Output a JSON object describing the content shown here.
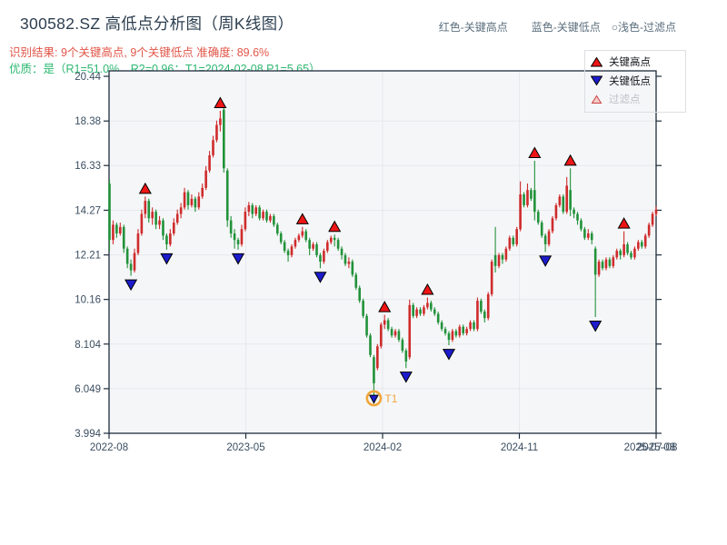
{
  "header": {
    "title": "300582.SZ 高低点分析图（周K线图）",
    "result_line": "识别结果: 9个关键高点, 9个关键低点  准确度: 89.6%",
    "quality_line": "优质：是（R1=51.0%，R2=0.96；T1=2024-02-08 P1=5.65）",
    "color_key": {
      "high_note": "红色-关键高点",
      "low_note": "蓝色-关键低点",
      "filtered_note": "○浅色-过滤点"
    }
  },
  "legend": {
    "items": [
      {
        "label": "关键高点",
        "marker": "red-up-triangle"
      },
      {
        "label": "关键低点",
        "marker": "blue-down-triangle"
      },
      {
        "label": "过滤点",
        "marker": "light-up-triangle"
      }
    ]
  },
  "colors": {
    "candle_up": "#cf2b2b",
    "candle_down": "#22923a",
    "key_high": "#ee1515",
    "key_low": "#1c1ccd",
    "filtered_fill": "#f6caca",
    "filtered_edge": "#cc4444",
    "t1_orange": "#f1a63a",
    "spine": "#1f2d3d",
    "grid": "#e6e8ec",
    "plot_bg": "#f5f6f8",
    "tick_text": "#3a4d60",
    "title_text": "#2c3e50",
    "result_text": "#e15548",
    "quality_text": "#2eb872",
    "header_key_text": "#5c6f7e"
  },
  "chart_data": {
    "type": "candlestick",
    "symbol": "300582.SZ",
    "period": "weekly",
    "title": "300582.SZ 高低点分析图（周K线图）",
    "accuracy": "89.6%",
    "counts": {
      "key_highs": 9,
      "key_lows": 9
    },
    "ylim": [
      3.994,
      20.44
    ],
    "y_ticks": [
      "20.44",
      "18.38",
      "16.33",
      "14.27",
      "12.21",
      "10.16",
      "8.104",
      "6.049",
      "3.994"
    ],
    "y_tick_values": [
      20.44,
      18.38,
      16.33,
      14.27,
      12.21,
      10.16,
      8.104,
      6.049,
      3.994
    ],
    "x_ticks": [
      "2022-08",
      "2023-05",
      "2024-02",
      "2024-11",
      "2025-08"
    ],
    "last_date_label": "2025-07-08",
    "grid": true,
    "legend_position": "top-right",
    "candles_ohlc": [
      [
        15.5,
        15.7,
        12.4,
        12.9
      ],
      [
        12.9,
        13.8,
        12.7,
        13.6
      ],
      [
        13.6,
        13.7,
        13.0,
        13.2
      ],
      [
        13.2,
        13.7,
        13.1,
        13.5
      ],
      [
        13.5,
        13.6,
        12.3,
        12.5
      ],
      [
        12.5,
        12.6,
        11.6,
        11.8
      ],
      [
        11.8,
        12.0,
        11.25,
        11.5
      ],
      [
        11.5,
        12.5,
        11.4,
        12.3
      ],
      [
        12.3,
        13.4,
        12.2,
        13.2
      ],
      [
        13.2,
        14.3,
        13.1,
        14.1
      ],
      [
        14.1,
        14.9,
        13.9,
        14.7
      ],
      [
        14.7,
        14.8,
        13.7,
        13.9
      ],
      [
        13.9,
        14.4,
        13.6,
        14.2
      ],
      [
        14.2,
        14.3,
        13.4,
        13.6
      ],
      [
        13.6,
        14.0,
        13.4,
        13.8
      ],
      [
        13.8,
        13.9,
        12.9,
        13.1
      ],
      [
        13.1,
        13.2,
        12.45,
        12.7
      ],
      [
        12.7,
        13.4,
        12.6,
        13.2
      ],
      [
        13.2,
        13.9,
        13.1,
        13.7
      ],
      [
        13.7,
        14.3,
        13.6,
        14.1
      ],
      [
        14.1,
        14.6,
        13.9,
        14.4
      ],
      [
        14.4,
        15.3,
        14.3,
        15.1
      ],
      [
        15.1,
        15.2,
        14.3,
        14.5
      ],
      [
        14.5,
        15.0,
        14.4,
        14.8
      ],
      [
        14.8,
        14.9,
        14.2,
        14.4
      ],
      [
        14.4,
        15.1,
        14.3,
        14.9
      ],
      [
        14.9,
        15.5,
        14.8,
        15.3
      ],
      [
        15.3,
        16.3,
        15.2,
        16.1
      ],
      [
        16.1,
        17.0,
        16.0,
        16.8
      ],
      [
        16.8,
        17.7,
        16.7,
        17.5
      ],
      [
        17.5,
        18.4,
        17.4,
        18.2
      ],
      [
        18.2,
        18.85,
        17.9,
        18.5
      ],
      [
        18.9,
        19.0,
        16.0,
        16.2
      ],
      [
        16.1,
        16.2,
        13.5,
        13.8
      ],
      [
        13.8,
        14.0,
        13.0,
        13.2
      ],
      [
        13.2,
        13.4,
        12.5,
        12.9
      ],
      [
        12.9,
        13.0,
        12.45,
        12.7
      ],
      [
        12.7,
        13.6,
        12.6,
        13.4
      ],
      [
        13.4,
        14.4,
        13.3,
        14.2
      ],
      [
        14.2,
        14.65,
        14.0,
        14.5
      ],
      [
        14.5,
        14.6,
        13.9,
        14.1
      ],
      [
        14.1,
        14.5,
        14.0,
        14.4
      ],
      [
        14.4,
        14.5,
        13.8,
        13.9
      ],
      [
        13.9,
        14.3,
        13.8,
        14.2
      ],
      [
        14.2,
        14.3,
        13.7,
        13.8
      ],
      [
        13.8,
        14.1,
        13.7,
        14.0
      ],
      [
        14.0,
        14.1,
        13.5,
        13.6
      ],
      [
        13.6,
        13.7,
        13.1,
        13.2
      ],
      [
        13.2,
        13.3,
        12.7,
        12.8
      ],
      [
        12.8,
        12.9,
        12.3,
        12.4
      ],
      [
        12.4,
        12.5,
        11.9,
        12.2
      ],
      [
        12.2,
        12.7,
        12.1,
        12.6
      ],
      [
        12.6,
        13.0,
        12.5,
        12.9
      ],
      [
        12.9,
        13.2,
        12.8,
        13.1
      ],
      [
        13.1,
        13.5,
        13.0,
        13.3
      ],
      [
        13.3,
        13.4,
        12.8,
        12.9
      ],
      [
        12.9,
        13.0,
        12.2,
        12.5
      ],
      [
        12.5,
        12.8,
        12.4,
        12.7
      ],
      [
        12.7,
        12.8,
        12.1,
        12.2
      ],
      [
        12.2,
        12.3,
        11.6,
        11.9
      ],
      [
        11.9,
        12.5,
        11.8,
        12.4
      ],
      [
        12.4,
        12.9,
        12.3,
        12.8
      ],
      [
        12.8,
        13.1,
        12.7,
        13.0
      ],
      [
        13.0,
        13.15,
        12.6,
        12.9
      ],
      [
        12.9,
        13.0,
        12.4,
        12.5
      ],
      [
        12.5,
        12.6,
        12.0,
        12.2
      ],
      [
        12.2,
        12.3,
        11.7,
        11.8
      ],
      [
        11.8,
        12.1,
        11.6,
        11.9
      ],
      [
        11.9,
        12.0,
        11.2,
        11.3
      ],
      [
        11.3,
        11.4,
        10.6,
        10.7
      ],
      [
        10.7,
        10.8,
        10.0,
        10.1
      ],
      [
        10.1,
        10.2,
        9.3,
        9.4
      ],
      [
        9.4,
        9.5,
        8.4,
        8.5
      ],
      [
        8.5,
        8.6,
        7.5,
        7.6
      ],
      [
        7.5,
        7.6,
        5.65,
        6.3
      ],
      [
        7.0,
        8.1,
        6.9,
        8.0
      ],
      [
        8.0,
        9.1,
        7.9,
        9.0
      ],
      [
        9.0,
        9.45,
        8.8,
        9.2
      ],
      [
        9.2,
        9.3,
        8.7,
        8.8
      ],
      [
        8.8,
        8.9,
        8.4,
        8.5
      ],
      [
        8.5,
        8.8,
        8.4,
        8.7
      ],
      [
        8.7,
        8.8,
        8.2,
        8.3
      ],
      [
        8.3,
        8.4,
        7.7,
        7.8
      ],
      [
        7.8,
        7.9,
        7.0,
        7.3
      ],
      [
        7.5,
        10.15,
        7.4,
        9.9
      ],
      [
        9.9,
        10.0,
        9.3,
        9.4
      ],
      [
        9.4,
        9.8,
        9.3,
        9.7
      ],
      [
        9.7,
        9.8,
        9.4,
        9.5
      ],
      [
        9.5,
        9.9,
        9.4,
        9.8
      ],
      [
        9.8,
        10.25,
        9.7,
        10.0
      ],
      [
        10.0,
        10.1,
        9.6,
        9.7
      ],
      [
        9.7,
        9.8,
        9.4,
        9.5
      ],
      [
        9.5,
        9.6,
        9.0,
        9.1
      ],
      [
        9.1,
        9.2,
        8.7,
        8.8
      ],
      [
        8.8,
        8.9,
        8.5,
        8.6
      ],
      [
        8.6,
        8.7,
        8.05,
        8.3
      ],
      [
        8.3,
        8.8,
        8.2,
        8.7
      ],
      [
        8.7,
        8.8,
        8.4,
        8.5
      ],
      [
        8.5,
        9.0,
        8.4,
        8.9
      ],
      [
        8.9,
        9.0,
        8.5,
        8.6
      ],
      [
        8.6,
        8.9,
        8.5,
        8.8
      ],
      [
        8.8,
        9.2,
        8.7,
        9.1
      ],
      [
        9.1,
        9.2,
        8.7,
        8.8
      ],
      [
        8.8,
        10.25,
        8.7,
        10.1
      ],
      [
        10.1,
        10.2,
        9.5,
        9.6
      ],
      [
        9.6,
        9.7,
        9.1,
        9.3
      ],
      [
        9.3,
        10.5,
        9.2,
        10.4
      ],
      [
        10.4,
        12.0,
        10.3,
        11.9
      ],
      [
        12.2,
        13.5,
        11.4,
        11.7
      ],
      [
        11.7,
        12.3,
        11.6,
        12.2
      ],
      [
        12.2,
        12.3,
        11.8,
        12.0
      ],
      [
        12.0,
        12.6,
        11.9,
        12.5
      ],
      [
        12.5,
        13.1,
        12.4,
        13.0
      ],
      [
        13.0,
        13.1,
        12.6,
        12.7
      ],
      [
        12.7,
        13.5,
        12.6,
        13.4
      ],
      [
        13.4,
        15.6,
        13.3,
        15.0
      ],
      [
        15.0,
        15.1,
        14.4,
        14.5
      ],
      [
        14.5,
        15.5,
        14.4,
        15.2
      ],
      [
        15.2,
        15.3,
        14.7,
        14.8
      ],
      [
        15.2,
        16.55,
        13.8,
        14.2
      ],
      [
        14.2,
        14.3,
        13.6,
        13.7
      ],
      [
        13.7,
        13.8,
        13.0,
        13.1
      ],
      [
        13.1,
        13.2,
        12.35,
        12.7
      ],
      [
        12.7,
        13.4,
        12.6,
        13.3
      ],
      [
        13.3,
        14.0,
        13.2,
        13.9
      ],
      [
        13.9,
        14.6,
        13.8,
        14.5
      ],
      [
        14.5,
        15.0,
        14.4,
        14.9
      ],
      [
        14.9,
        15.0,
        14.1,
        14.2
      ],
      [
        14.2,
        15.8,
        14.1,
        15.4
      ],
      [
        15.2,
        16.2,
        14.0,
        14.3
      ],
      [
        14.3,
        14.4,
        13.9,
        14.1
      ],
      [
        14.1,
        14.2,
        13.6,
        13.8
      ],
      [
        13.8,
        13.9,
        13.3,
        13.4
      ],
      [
        13.4,
        13.5,
        12.9,
        13.0
      ],
      [
        13.0,
        13.4,
        12.9,
        13.2
      ],
      [
        13.2,
        13.3,
        12.7,
        12.9
      ],
      [
        12.5,
        12.6,
        9.35,
        11.3
      ],
      [
        11.3,
        12.0,
        11.2,
        11.9
      ],
      [
        11.9,
        12.0,
        11.5,
        11.6
      ],
      [
        11.6,
        12.1,
        11.5,
        12.0
      ],
      [
        12.0,
        12.1,
        11.6,
        11.7
      ],
      [
        11.7,
        12.2,
        11.6,
        12.1
      ],
      [
        12.1,
        12.5,
        12.0,
        12.4
      ],
      [
        12.4,
        12.5,
        12.0,
        12.2
      ],
      [
        12.2,
        13.3,
        12.1,
        12.7
      ],
      [
        12.7,
        12.8,
        12.2,
        12.3
      ],
      [
        12.3,
        12.4,
        12.0,
        12.1
      ],
      [
        12.1,
        12.6,
        12.0,
        12.5
      ],
      [
        12.5,
        12.9,
        12.4,
        12.8
      ],
      [
        12.8,
        12.9,
        12.5,
        12.6
      ],
      [
        12.6,
        13.2,
        12.5,
        13.1
      ],
      [
        13.1,
        13.7,
        13.0,
        13.6
      ],
      [
        13.6,
        14.2,
        13.5,
        14.1
      ],
      [
        14.1,
        14.45,
        14.0,
        14.3
      ]
    ],
    "key_highs": [
      [
        10,
        14.9
      ],
      [
        31,
        18.85
      ],
      [
        54,
        13.5
      ],
      [
        63,
        13.15
      ],
      [
        77,
        9.45
      ],
      [
        89,
        10.25
      ],
      [
        119,
        16.55
      ],
      [
        129,
        16.2
      ],
      [
        144,
        13.3
      ]
    ],
    "key_lows": [
      [
        6,
        11.25
      ],
      [
        16,
        12.45
      ],
      [
        36,
        12.45
      ],
      [
        59,
        11.6
      ],
      [
        74,
        5.65
      ],
      [
        83,
        7.0
      ],
      [
        95,
        8.05
      ],
      [
        122,
        12.35
      ],
      [
        136,
        9.35
      ]
    ],
    "t1": {
      "index": 74,
      "price": 5.65,
      "label": "T1",
      "date": "2024-02-08"
    }
  }
}
